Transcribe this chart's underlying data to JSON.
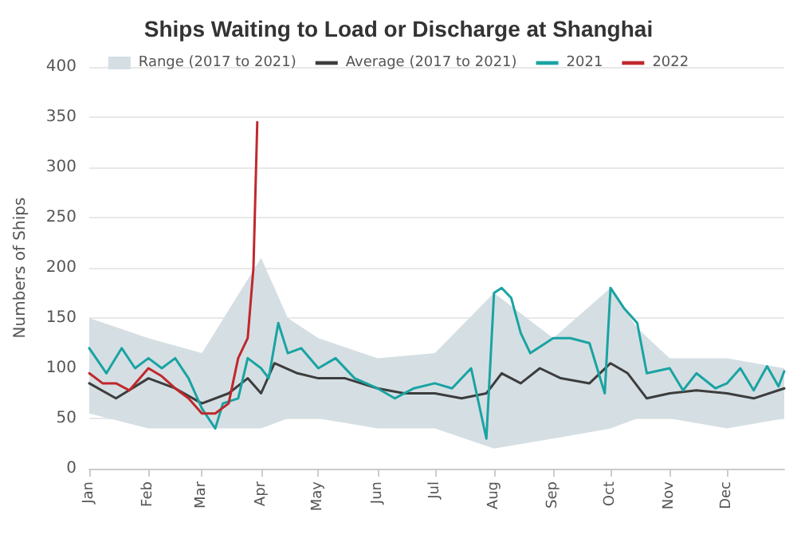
{
  "chart_data": {
    "type": "line",
    "title": "Ships Waiting to Load or Discharge at Shanghai",
    "ylabel": "Numbers of Ships",
    "xlim": [
      "--01-01",
      "--12-31"
    ],
    "xticks": [
      {
        "value": "--01-01",
        "label": "Jan"
      },
      {
        "value": "--02-01",
        "label": "Feb"
      },
      {
        "value": "--03-01",
        "label": "Mar"
      },
      {
        "value": "--04-01",
        "label": "Apr"
      },
      {
        "value": "--05-01",
        "label": "May"
      },
      {
        "value": "--06-01",
        "label": "Jun"
      },
      {
        "value": "--07-01",
        "label": "Jul"
      },
      {
        "value": "--08-01",
        "label": "Aug"
      },
      {
        "value": "--09-01",
        "label": "Sep"
      },
      {
        "value": "--10-01",
        "label": "Oct"
      },
      {
        "value": "--11-01",
        "label": "Nov"
      },
      {
        "value": "--12-01",
        "label": "Dec"
      }
    ],
    "ylim": [
      0,
      400
    ],
    "yticks": [
      0,
      50,
      100,
      150,
      200,
      250,
      300,
      350,
      400
    ],
    "grid": "y",
    "legend": "top",
    "marker": "none",
    "line_style": "solid",
    "series": [
      {
        "name": "Range (2017 to 2021)",
        "type": "area",
        "color": "#d5dfe3",
        "x": [
          "--01-01",
          "--02-01",
          "--03-01",
          "--04-01",
          "--04-15",
          "--05-01",
          "--06-01",
          "--07-01",
          "--08-01",
          "--09-01",
          "--10-01",
          "--10-15",
          "--11-01",
          "--12-01",
          "--12-31"
        ],
        "values": [
          null,
          null,
          null,
          null,
          null,
          null,
          null,
          null,
          null,
          null,
          null,
          null,
          null,
          null,
          null
        ],
        "lower": [
          55,
          40,
          40,
          40,
          50,
          50,
          40,
          40,
          20,
          30,
          40,
          50,
          50,
          40,
          50
        ],
        "upper": [
          150,
          130,
          115,
          210,
          150,
          130,
          110,
          115,
          175,
          130,
          180,
          140,
          110,
          110,
          100
        ]
      },
      {
        "name": "Average (2017 to 2021)",
        "color": "#3d3d3d",
        "x": [
          "--01-01",
          "--01-15",
          "--02-01",
          "--02-15",
          "--03-01",
          "--03-15",
          "--03-25",
          "--04-01",
          "--04-08",
          "--04-20",
          "--05-01",
          "--05-15",
          "--06-01",
          "--06-15",
          "--07-01",
          "--07-15",
          "--07-28",
          "--08-05",
          "--08-15",
          "--08-25",
          "--09-05",
          "--09-20",
          "--10-01",
          "--10-10",
          "--10-20",
          "--11-01",
          "--11-15",
          "--12-01",
          "--12-15",
          "--12-31"
        ],
        "values": [
          85,
          70,
          90,
          80,
          65,
          75,
          90,
          75,
          105,
          95,
          90,
          90,
          80,
          75,
          75,
          70,
          75,
          95,
          85,
          100,
          90,
          85,
          105,
          95,
          70,
          75,
          78,
          75,
          70,
          80
        ]
      },
      {
        "name": "2021",
        "color": "#1aa3a3",
        "x": [
          "--01-01",
          "--01-10",
          "--01-18",
          "--01-25",
          "--02-01",
          "--02-08",
          "--02-15",
          "--02-22",
          "--03-01",
          "--03-08",
          "--03-12",
          "--03-20",
          "--03-25",
          "--04-01",
          "--04-05",
          "--04-10",
          "--04-15",
          "--04-22",
          "--05-01",
          "--05-10",
          "--05-20",
          "--06-01",
          "--06-10",
          "--06-20",
          "--07-01",
          "--07-10",
          "--07-20",
          "--07-28",
          "--08-01",
          "--08-05",
          "--08-10",
          "--08-15",
          "--08-20",
          "--09-01",
          "--09-10",
          "--09-20",
          "--09-28",
          "--10-01",
          "--10-08",
          "--10-15",
          "--10-20",
          "--11-01",
          "--11-08",
          "--11-15",
          "--11-25",
          "--12-01",
          "--12-08",
          "--12-15",
          "--12-22",
          "--12-28",
          "--12-31"
        ],
        "values": [
          120,
          95,
          120,
          100,
          110,
          100,
          110,
          90,
          60,
          40,
          65,
          70,
          110,
          100,
          90,
          145,
          115,
          120,
          100,
          110,
          90,
          80,
          70,
          80,
          85,
          80,
          100,
          30,
          175,
          180,
          170,
          135,
          115,
          130,
          130,
          125,
          75,
          180,
          160,
          145,
          95,
          100,
          78,
          95,
          80,
          85,
          100,
          78,
          102,
          82,
          97
        ]
      },
      {
        "name": "2022",
        "color": "#c0282d",
        "x": [
          "--01-01",
          "--01-08",
          "--01-15",
          "--01-22",
          "--02-01",
          "--02-08",
          "--02-15",
          "--02-22",
          "--03-01",
          "--03-08",
          "--03-15",
          "--03-20",
          "--03-25",
          "--03-28",
          "--03-30"
        ],
        "values": [
          95,
          85,
          85,
          78,
          100,
          92,
          80,
          70,
          55,
          55,
          65,
          110,
          130,
          200,
          345
        ]
      }
    ]
  }
}
